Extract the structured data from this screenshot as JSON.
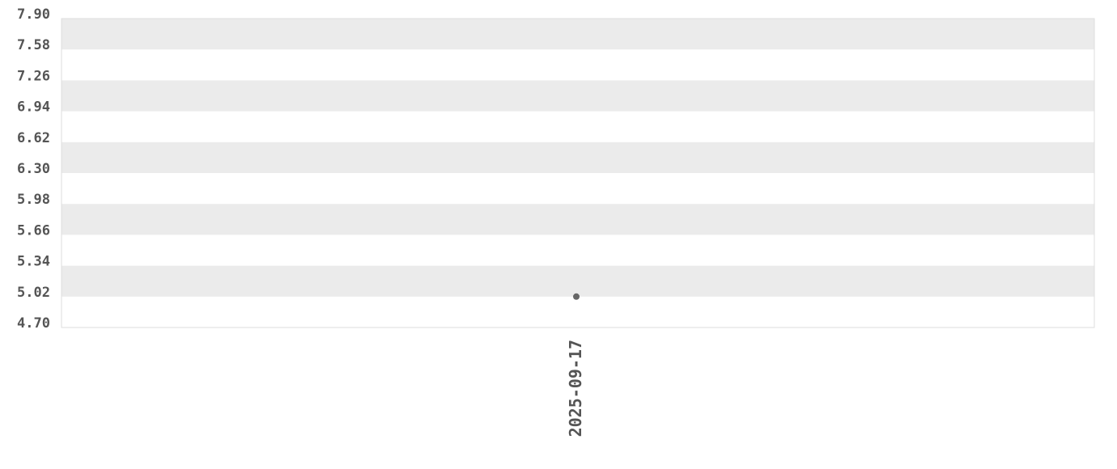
{
  "chart_data": {
    "type": "scatter",
    "title": "",
    "xlabel": "",
    "ylabel": "",
    "x_categories": [
      "2025-09-17"
    ],
    "series": [
      {
        "points": [
          {
            "x": "2025-09-17",
            "y": 5.02
          }
        ]
      }
    ],
    "ylim": [
      4.7,
      7.9
    ],
    "y_ticks": [
      "7.90",
      "7.58",
      "7.26",
      "6.94",
      "6.62",
      "6.30",
      "5.98",
      "5.66",
      "5.34",
      "5.02",
      "4.70"
    ],
    "grid": "alternating horizontal bands",
    "colors": {
      "band": "#ebebeb",
      "point": "#666666",
      "text": "#555555",
      "border": "#dddddd"
    }
  }
}
